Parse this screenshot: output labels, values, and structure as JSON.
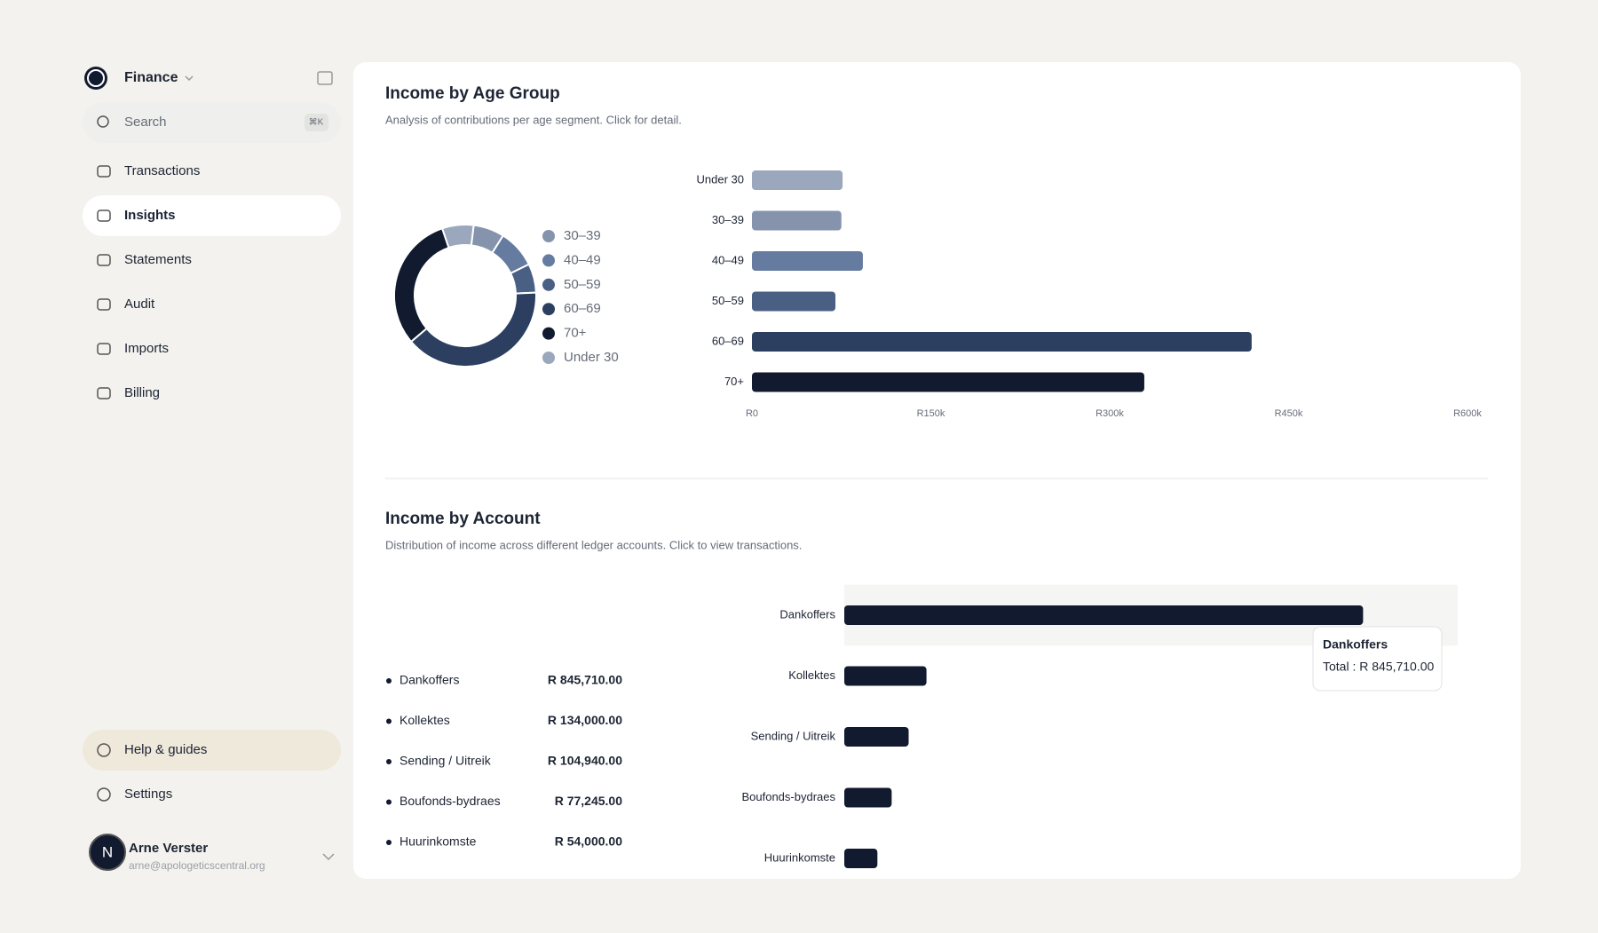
{
  "sidebar": {
    "brand": "Finance",
    "search": "Search",
    "shortcut": "⌘K",
    "nav": [
      "Transactions",
      "Insights",
      "Statements",
      "Audit",
      "Imports",
      "Billing"
    ],
    "active": 1,
    "footer_nav": [
      "Help & guides",
      "Settings"
    ],
    "user": {
      "initial": "N",
      "name": "Arne Verster",
      "email": "arne@apologeticscentral.org"
    }
  },
  "chart_data": [
    {
      "type": "pie",
      "title": "Income by Age Group",
      "subtitle": "Analysis of contributions per age segment. Click for detail.",
      "categories": [
        "30–39",
        "40–49",
        "50–59",
        "60–69",
        "70+",
        "Under 30"
      ],
      "values": [
        75000,
        93000,
        70000,
        419000,
        329000,
        76000
      ],
      "colors": [
        "#8593ad",
        "#667ba0",
        "#4a5f84",
        "#2c3f60",
        "#111a2e",
        "#9ba7bc"
      ],
      "donut": true,
      "legend": "right"
    },
    {
      "type": "bar",
      "orientation": "horizontal",
      "categories": [
        "Under 30",
        "30–39",
        "40–49",
        "50–59",
        "60–69",
        "70+"
      ],
      "values": [
        76000,
        75000,
        93000,
        70000,
        419000,
        329000
      ],
      "colors": [
        "#9ba7bc",
        "#8593ad",
        "#667ba0",
        "#4a5f84",
        "#2c3f60",
        "#111a2e"
      ],
      "xlim": [
        0,
        600000
      ],
      "xticks": [
        {
          "value": 0,
          "label": "R0"
        },
        {
          "value": 150000,
          "label": "R150k"
        },
        {
          "value": 300000,
          "label": "R300k"
        },
        {
          "value": 450000,
          "label": "R450k"
        },
        {
          "value": 600000,
          "label": "R600k"
        }
      ]
    },
    {
      "type": "bar",
      "orientation": "horizontal",
      "title": "Income by Account",
      "subtitle": "Distribution of income across different ledger accounts. Click to view transactions.",
      "categories": [
        "Dankoffers",
        "Kollektes",
        "Sending / Uitreik",
        "Boufonds-bydraes",
        "Huurinkomste"
      ],
      "values": [
        845710,
        134000,
        104940,
        77245,
        54000
      ],
      "value_labels": [
        "R 845,710.00",
        "R 134,000.00",
        "R 104,940.00",
        "R 77,245.00",
        "R 54,000.00"
      ],
      "color": "#111a2e",
      "xlim": [
        0,
        1000000
      ],
      "highlight": 0,
      "tooltip": {
        "title": "Dankoffers",
        "text": "Total : R 845,710.00"
      }
    }
  ]
}
